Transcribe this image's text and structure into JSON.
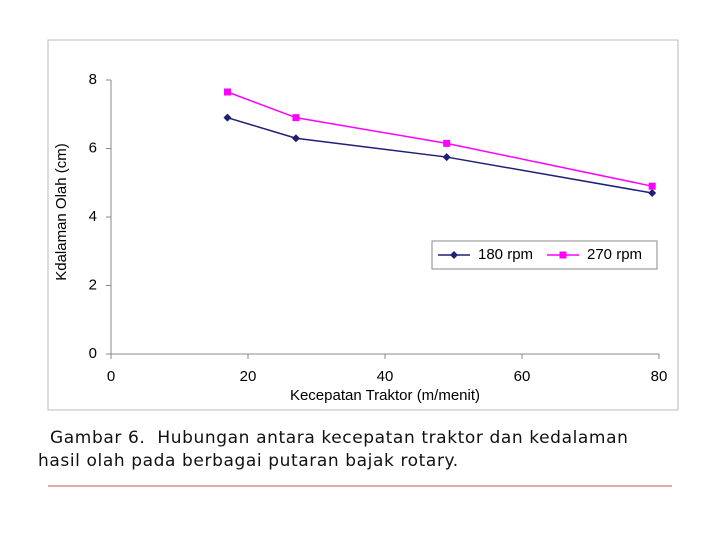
{
  "chart_data": {
    "type": "line",
    "x": [
      17,
      27,
      49,
      79
    ],
    "series": [
      {
        "name": "180 rpm",
        "color": "#1f1f78",
        "marker": "diamond",
        "values": [
          6.9,
          6.3,
          5.75,
          4.7
        ]
      },
      {
        "name": "270 rpm",
        "color": "#ff00ff",
        "marker": "square",
        "values": [
          7.65,
          6.9,
          6.15,
          4.9
        ]
      }
    ],
    "xlabel": "Kecepatan Traktor (m/menit)",
    "ylabel": "Kdalaman Olah (cm)",
    "xlim": [
      0,
      80
    ],
    "xticks": [
      0,
      20,
      40,
      60,
      80
    ],
    "ylim": [
      0,
      8
    ],
    "yticks": [
      0,
      2,
      4,
      6,
      8
    ],
    "grid": false
  },
  "caption": [
    "Gambar 6.  Hubungan antara kecepatan traktor dan kedalaman",
    "hasil olah pada berbagai putaran bajak rotary."
  ]
}
